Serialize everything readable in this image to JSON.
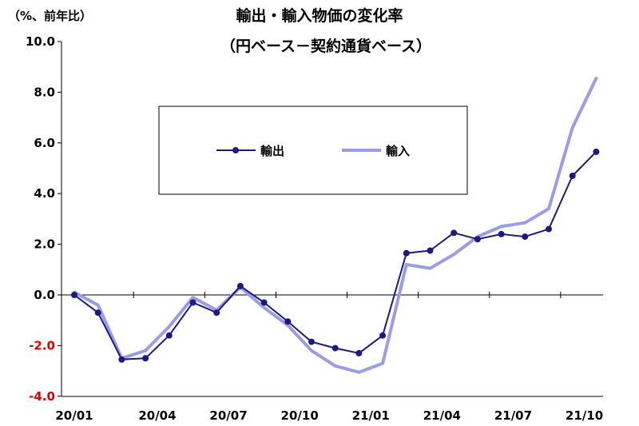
{
  "chart_data": {
    "type": "line",
    "title": "輸出・輸入物価の変化率",
    "subtitle": "（円ベース－契約通貨ベース）",
    "unit_label": "（%、前年比）",
    "ylim": [
      -4.0,
      10.0
    ],
    "y_ticks": [
      {
        "value": 10.0,
        "label": "10.0"
      },
      {
        "value": 8.0,
        "label": "8.0"
      },
      {
        "value": 6.0,
        "label": "6.0"
      },
      {
        "value": 4.0,
        "label": "4.0"
      },
      {
        "value": 2.0,
        "label": "2.0"
      },
      {
        "value": 0.0,
        "label": "0.0"
      },
      {
        "value": -2.0,
        "label": "-2.0"
      },
      {
        "value": -4.0,
        "label": "-4.0"
      }
    ],
    "negative_tick_color": "#e00000",
    "x": [
      "20/01",
      "20/02",
      "20/03",
      "20/04",
      "20/05",
      "20/06",
      "20/07",
      "20/08",
      "20/09",
      "20/10",
      "20/11",
      "20/12",
      "21/01",
      "21/02",
      "21/03",
      "21/04",
      "21/05",
      "21/06",
      "21/07",
      "21/08",
      "21/09",
      "21/10",
      "21/11"
    ],
    "x_tick_labels": [
      {
        "index": 0,
        "label": "20/01"
      },
      {
        "index": 3,
        "label": "20/04"
      },
      {
        "index": 6,
        "label": "20/07"
      },
      {
        "index": 9,
        "label": "20/10"
      },
      {
        "index": 12,
        "label": "21/01"
      },
      {
        "index": 15,
        "label": "21/04"
      },
      {
        "index": 18,
        "label": "21/07"
      },
      {
        "index": 21,
        "label": "21/10"
      }
    ],
    "grid": false,
    "legend_placement": "center-top",
    "series": [
      {
        "name": "輸出",
        "color": "#1a1a80",
        "markers": true,
        "values": [
          0.0,
          -0.7,
          -2.55,
          -2.5,
          -1.6,
          -0.3,
          -0.7,
          0.35,
          -0.3,
          -1.05,
          -1.85,
          -2.1,
          -2.3,
          -1.6,
          1.65,
          1.75,
          2.45,
          2.2,
          2.4,
          2.3,
          2.6,
          4.7,
          5.65
        ]
      },
      {
        "name": "輸入",
        "color": "#9b9ce8",
        "markers": false,
        "values": [
          0.1,
          -0.4,
          -2.5,
          -2.2,
          -1.25,
          -0.1,
          -0.6,
          0.3,
          -0.5,
          -1.2,
          -2.2,
          -2.8,
          -3.05,
          -2.7,
          1.2,
          1.05,
          1.6,
          2.3,
          2.7,
          2.85,
          3.4,
          6.6,
          8.55
        ]
      }
    ]
  }
}
